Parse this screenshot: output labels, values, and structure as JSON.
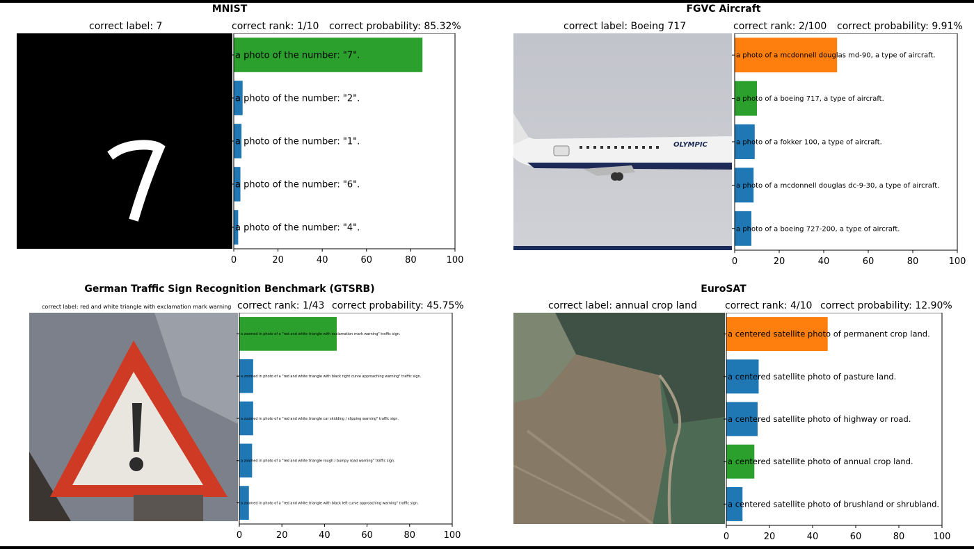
{
  "panels": [
    {
      "title": "MNIST",
      "label_text": "correct label: 7",
      "rank_text": "correct rank: 1/10",
      "prob_text": "correct probability: 85.32%",
      "image": "digit-7"
    },
    {
      "title": "FGVC Aircraft",
      "label_text": "correct label: Boeing 717",
      "rank_text": "correct rank: 2/100",
      "prob_text": "correct probability: 9.91%",
      "image": "airplane",
      "airline_text": "OLYMPIC"
    },
    {
      "title": "German Traffic Sign Recognition Benchmark (GTSRB)",
      "label_text": "correct label: red and white triangle with exclamation mark warning",
      "rank_text": "correct rank: 1/43",
      "prob_text": "correct probability: 45.75%",
      "image": "warning-sign"
    },
    {
      "title": "EuroSAT",
      "label_text": "correct label: annual crop land",
      "rank_text": "correct rank: 4/10",
      "prob_text": "correct probability: 12.90%",
      "image": "satellite"
    }
  ],
  "chart_data": [
    {
      "type": "bar",
      "orientation": "horizontal",
      "categories": [
        "a photo of the number: \"7\".",
        "a photo of the number: \"2\".",
        "a photo of the number: \"1\".",
        "a photo of the number: \"6\".",
        "a photo of the number: \"4\"."
      ],
      "values": [
        85.3,
        4,
        3.5,
        3,
        2
      ],
      "colors": [
        "#2ca02c",
        "#1f77b4",
        "#1f77b4",
        "#1f77b4",
        "#1f77b4"
      ],
      "xlim": [
        0,
        100
      ],
      "xticks": [
        0,
        20,
        40,
        60,
        80,
        100
      ]
    },
    {
      "type": "bar",
      "orientation": "horizontal",
      "categories": [
        "a photo of a mcdonnell douglas md-90, a type of aircraft.",
        "a photo of a boeing 717, a type of aircraft.",
        "a photo of a fokker 100, a type of aircraft.",
        "a photo of a mcdonnell douglas dc-9-30, a type of aircraft.",
        "a photo of a boeing 727-200, a type of aircraft."
      ],
      "values": [
        46,
        10,
        9,
        8.5,
        7.5
      ],
      "colors": [
        "#ff7f0e",
        "#2ca02c",
        "#1f77b4",
        "#1f77b4",
        "#1f77b4"
      ],
      "xlim": [
        0,
        100
      ],
      "xticks": [
        0,
        20,
        40,
        60,
        80,
        100
      ]
    },
    {
      "type": "bar",
      "orientation": "horizontal",
      "categories": [
        "a zoomed in photo of a \"red and white triangle with exclamation mark warning\" traffic sign.",
        "a zoomed in photo of a \"red and white triangle with black right curve approaching warning\" traffic sign.",
        "a zoomed in photo of a \"red and white triangle car skidding / slipping warning\" traffic sign.",
        "a zoomed in photo of a \"red and white triangle rough / bumpy road warning\" traffic sign.",
        "a zoomed in photo of a \"red and white triangle with black left curve approaching warning\" traffic sign."
      ],
      "values": [
        45.75,
        6.5,
        6.5,
        6,
        4.5
      ],
      "colors": [
        "#2ca02c",
        "#1f77b4",
        "#1f77b4",
        "#1f77b4",
        "#1f77b4"
      ],
      "xlim": [
        0,
        100
      ],
      "xticks": [
        0,
        20,
        40,
        60,
        80,
        100
      ]
    },
    {
      "type": "bar",
      "orientation": "horizontal",
      "categories": [
        "a centered satellite photo of permanent crop land.",
        "a centered satellite photo of pasture land.",
        "a centered satellite photo of highway or road.",
        "a centered satellite photo of annual crop land.",
        "a centered satellite photo of brushland or shrubland."
      ],
      "values": [
        47,
        15,
        14.5,
        13,
        7.5
      ],
      "colors": [
        "#ff7f0e",
        "#1f77b4",
        "#1f77b4",
        "#2ca02c",
        "#1f77b4"
      ],
      "xlim": [
        0,
        100
      ],
      "xticks": [
        0,
        20,
        40,
        60,
        80,
        100
      ]
    }
  ]
}
